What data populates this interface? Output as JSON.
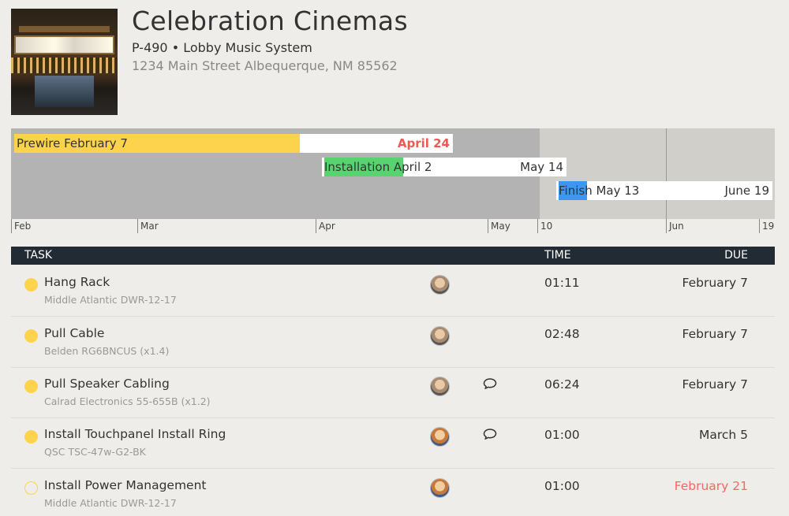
{
  "header": {
    "title": "Celebration Cinemas",
    "subtitle": "P-490 • Lobby Music System",
    "address": "1234 Main Street Albequerque, NM 85562",
    "thumbnail_icon": "cinema-photo"
  },
  "timeline": {
    "bars": [
      {
        "start_label": "Prewire February 7",
        "end_label": "April 24",
        "progress": 0.65,
        "color": "#fdd34e",
        "end_overdue": true
      },
      {
        "start_label": "Installation April 2",
        "end_label": "May 14",
        "progress": 0.33,
        "color": "#57d46f",
        "end_overdue": false
      },
      {
        "start_label": "Finish May 13",
        "end_label": "June 19",
        "progress": 0.14,
        "color": "#3b97f0",
        "end_overdue": false
      }
    ],
    "axis_labels": [
      "Feb",
      "Mar",
      "Apr",
      "May",
      "10",
      "Jun",
      "19"
    ],
    "colors": {
      "past": "#b3b3b3",
      "future": "#d0cfc9"
    }
  },
  "table": {
    "headers": {
      "task": "TASK",
      "time": "TIME",
      "due": "DUE"
    },
    "rows": [
      {
        "name": "Hang Rack",
        "detail": "Middle Atlantic DWR-12-17",
        "status": "started",
        "has_comment": false,
        "avatar": "avatar-1",
        "time": "01:11",
        "due": "February 7",
        "due_late": false
      },
      {
        "name": "Pull Cable",
        "detail": "Belden RG6BNCUS (x1.4)",
        "status": "started",
        "has_comment": false,
        "avatar": "avatar-1",
        "time": "02:48",
        "due": "February 7",
        "due_late": false
      },
      {
        "name": "Pull Speaker Cabling",
        "detail": "Calrad Electronics 55-655B (x1.2)",
        "status": "started",
        "has_comment": true,
        "avatar": "avatar-1",
        "time": "06:24",
        "due": "February 7",
        "due_late": false
      },
      {
        "name": "Install Touchpanel Install Ring",
        "detail": "QSC TSC-47w-G2-BK",
        "status": "started",
        "has_comment": true,
        "avatar": "avatar-2",
        "time": "01:00",
        "due": "March 5",
        "due_late": false
      },
      {
        "name": "Install Power Management",
        "detail": "Middle Atlantic DWR-12-17",
        "status": "not-started",
        "has_comment": false,
        "avatar": "avatar-2",
        "time": "01:00",
        "due": "February 21",
        "due_late": true
      }
    ],
    "colors": {
      "status_dot": "#fdd34e",
      "late": "#ee6a62",
      "header_bg": "#222a33"
    }
  }
}
